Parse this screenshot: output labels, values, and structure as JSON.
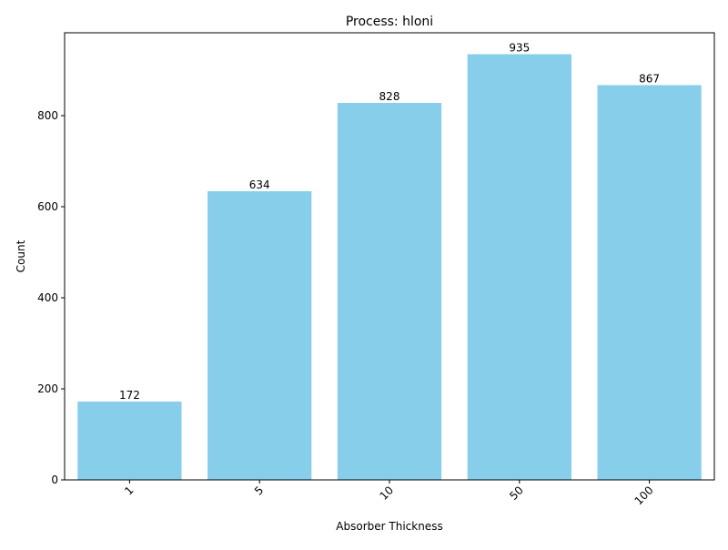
{
  "chart_data": {
    "type": "bar",
    "title": "Process: hloni",
    "xlabel": "Absorber Thickness",
    "ylabel": "Count",
    "categories": [
      "1",
      "5",
      "10",
      "50",
      "100"
    ],
    "values": [
      172,
      634,
      828,
      935,
      867
    ],
    "data_labels": [
      "172",
      "634",
      "828",
      "935",
      "867"
    ],
    "ylim": [
      0,
      982
    ],
    "yticks": [
      0,
      200,
      400,
      600,
      800
    ],
    "ytick_labels": [
      "0",
      "200",
      "400",
      "600",
      "800"
    ],
    "grid": false,
    "legend": "none",
    "xtick_rotation_deg": 45,
    "bar_color": "#87CEEB",
    "axis_color": "#000000"
  }
}
